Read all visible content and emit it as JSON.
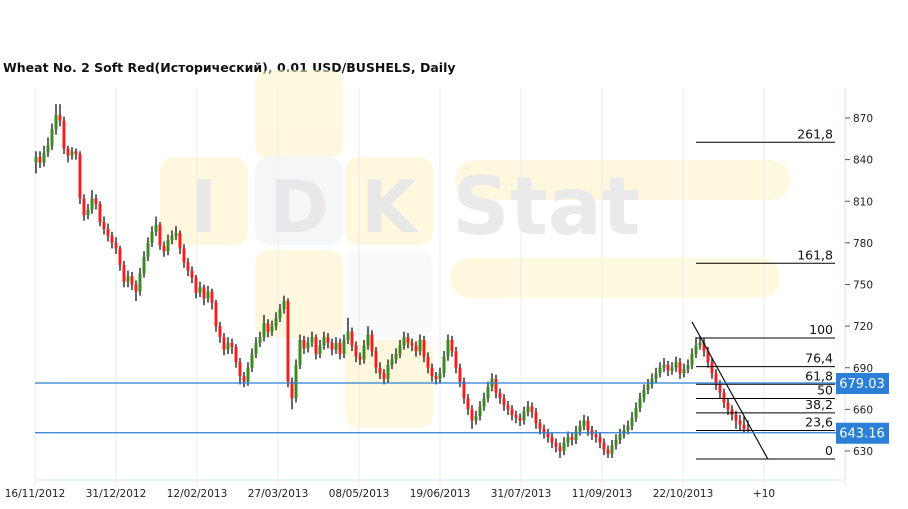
{
  "title": "Wheat  No. 2 Soft Red(Исторический), 0.01 USD/BUSHELS, Daily",
  "watermark": {
    "letters": [
      "I",
      "D",
      "K"
    ],
    "word": "Stat"
  },
  "colors": {
    "up": "#3b8b1f",
    "down": "#ee2222",
    "wick": "#000000",
    "hline": "#2b7fd6",
    "label_bg": "#2b7fd6",
    "grid": "#e4edf5",
    "fib": "#000000"
  },
  "chart_data": {
    "type": "candlestick",
    "title": "Wheat  No. 2 Soft Red(Исторический), 0.01 USD/BUSHELS, Daily",
    "ylim": [
      616,
      890
    ],
    "y_ticks": [
      870,
      840,
      810,
      780,
      750,
      720,
      690,
      660,
      630
    ],
    "x_tick_labels": [
      "16/11/2012",
      "31/12/2012",
      "12/02/2013",
      "27/03/2013",
      "08/05/2013",
      "19/06/2013",
      "31/07/2013",
      "11/09/2013",
      "22/10/2013",
      "+10"
    ],
    "grid": true,
    "price_lines": [
      {
        "value": 679.03,
        "label": "679.03"
      },
      {
        "value": 643.16,
        "label": "643.16"
      }
    ],
    "fibonacci": [
      {
        "label": "261,8",
        "value": 852.5
      },
      {
        "label": "161,8",
        "value": 765.3
      },
      {
        "label": "100",
        "value": 711.4
      },
      {
        "label": "76,4",
        "value": 690.8
      },
      {
        "label": "61,8",
        "value": 678.1
      },
      {
        "label": "50",
        "value": 667.8
      },
      {
        "label": "38,2",
        "value": 657.5
      },
      {
        "label": "23,6",
        "value": 644.8
      },
      {
        "label": "0",
        "value": 624.2
      }
    ],
    "trendline": {
      "from": [
        164,
        723
      ],
      "to": [
        183,
        624
      ]
    },
    "ohlc": [
      [
        838,
        846,
        830,
        842
      ],
      [
        842,
        846,
        834,
        838
      ],
      [
        838,
        850,
        835,
        845
      ],
      [
        845,
        856,
        842,
        850
      ],
      [
        850,
        866,
        847,
        862
      ],
      [
        862,
        880,
        858,
        872
      ],
      [
        872,
        880,
        864,
        868
      ],
      [
        868,
        871,
        844,
        848
      ],
      [
        848,
        850,
        838,
        843
      ],
      [
        843,
        849,
        840,
        846
      ],
      [
        846,
        848,
        840,
        844
      ],
      [
        844,
        846,
        808,
        812
      ],
      [
        812,
        815,
        796,
        800
      ],
      [
        800,
        808,
        797,
        804
      ],
      [
        804,
        818,
        801,
        812
      ],
      [
        812,
        815,
        804,
        808
      ],
      [
        808,
        810,
        792,
        795
      ],
      [
        795,
        799,
        786,
        790
      ],
      [
        790,
        794,
        781,
        785
      ],
      [
        785,
        788,
        776,
        780
      ],
      [
        780,
        784,
        772,
        776
      ],
      [
        776,
        778,
        760,
        764
      ],
      [
        764,
        767,
        748,
        752
      ],
      [
        752,
        760,
        748,
        756
      ],
      [
        756,
        759,
        746,
        750
      ],
      [
        750,
        753,
        738,
        745
      ],
      [
        745,
        762,
        742,
        758
      ],
      [
        758,
        774,
        755,
        770
      ],
      [
        770,
        784,
        767,
        780
      ],
      [
        780,
        792,
        777,
        788
      ],
      [
        788,
        799,
        785,
        793
      ],
      [
        793,
        795,
        775,
        778
      ],
      [
        778,
        781,
        770,
        774
      ],
      [
        774,
        786,
        771,
        782
      ],
      [
        782,
        789,
        779,
        785
      ],
      [
        785,
        792,
        782,
        787
      ],
      [
        787,
        789,
        772,
        776
      ],
      [
        776,
        779,
        762,
        766
      ],
      [
        766,
        769,
        756,
        760
      ],
      [
        760,
        763,
        751,
        755
      ],
      [
        755,
        757,
        740,
        744
      ],
      [
        744,
        752,
        741,
        748
      ],
      [
        748,
        750,
        735,
        740
      ],
      [
        740,
        749,
        737,
        745
      ],
      [
        745,
        747,
        732,
        737
      ],
      [
        737,
        739,
        716,
        720
      ],
      [
        720,
        723,
        708,
        712
      ],
      [
        712,
        715,
        699,
        703
      ],
      [
        703,
        712,
        700,
        708
      ],
      [
        708,
        711,
        700,
        705
      ],
      [
        705,
        707,
        690,
        694
      ],
      [
        694,
        697,
        678,
        684
      ],
      [
        684,
        687,
        676,
        680
      ],
      [
        680,
        694,
        677,
        690
      ],
      [
        690,
        704,
        687,
        700
      ],
      [
        700,
        712,
        697,
        708
      ],
      [
        708,
        716,
        705,
        712
      ],
      [
        712,
        728,
        709,
        722
      ],
      [
        722,
        725,
        712,
        716
      ],
      [
        716,
        724,
        713,
        720
      ],
      [
        720,
        730,
        717,
        726
      ],
      [
        726,
        736,
        723,
        732
      ],
      [
        732,
        742,
        729,
        738
      ],
      [
        738,
        740,
        676,
        680
      ],
      [
        680,
        683,
        660,
        668
      ],
      [
        668,
        696,
        665,
        692
      ],
      [
        692,
        714,
        689,
        710
      ],
      [
        710,
        713,
        700,
        704
      ],
      [
        704,
        712,
        701,
        708
      ],
      [
        708,
        716,
        705,
        712
      ],
      [
        712,
        714,
        696,
        700
      ],
      [
        700,
        710,
        697,
        706
      ],
      [
        706,
        716,
        703,
        712
      ],
      [
        712,
        715,
        704,
        708
      ],
      [
        708,
        711,
        699,
        703
      ],
      [
        703,
        712,
        700,
        708
      ],
      [
        708,
        711,
        696,
        700
      ],
      [
        700,
        714,
        697,
        710
      ],
      [
        710,
        726,
        707,
        716
      ],
      [
        716,
        719,
        702,
        706
      ],
      [
        706,
        709,
        694,
        698
      ],
      [
        698,
        701,
        692,
        696
      ],
      [
        696,
        710,
        693,
        706
      ],
      [
        706,
        720,
        703,
        714
      ],
      [
        714,
        717,
        698,
        702
      ],
      [
        702,
        705,
        686,
        690
      ],
      [
        690,
        694,
        682,
        686
      ],
      [
        686,
        689,
        678,
        682
      ],
      [
        682,
        696,
        679,
        692
      ],
      [
        692,
        700,
        689,
        696
      ],
      [
        696,
        704,
        693,
        700
      ],
      [
        700,
        710,
        697,
        706
      ],
      [
        706,
        716,
        703,
        712
      ],
      [
        712,
        715,
        704,
        708
      ],
      [
        708,
        711,
        702,
        706
      ],
      [
        706,
        709,
        698,
        702
      ],
      [
        702,
        714,
        699,
        710
      ],
      [
        710,
        713,
        694,
        698
      ],
      [
        698,
        701,
        686,
        690
      ],
      [
        690,
        693,
        680,
        684
      ],
      [
        684,
        687,
        678,
        682
      ],
      [
        682,
        690,
        679,
        686
      ],
      [
        686,
        702,
        683,
        698
      ],
      [
        698,
        714,
        695,
        710
      ],
      [
        710,
        713,
        698,
        702
      ],
      [
        702,
        705,
        686,
        690
      ],
      [
        690,
        693,
        676,
        680
      ],
      [
        680,
        683,
        664,
        668
      ],
      [
        668,
        671,
        656,
        660
      ],
      [
        660,
        663,
        646,
        652
      ],
      [
        652,
        659,
        649,
        655
      ],
      [
        655,
        666,
        652,
        662
      ],
      [
        662,
        672,
        659,
        668
      ],
      [
        668,
        680,
        665,
        676
      ],
      [
        676,
        686,
        673,
        682
      ],
      [
        682,
        685,
        668,
        672
      ],
      [
        672,
        675,
        664,
        668
      ],
      [
        668,
        671,
        659,
        663
      ],
      [
        663,
        666,
        656,
        660
      ],
      [
        660,
        663,
        652,
        656
      ],
      [
        656,
        659,
        650,
        654
      ],
      [
        654,
        657,
        648,
        652
      ],
      [
        652,
        662,
        649,
        658
      ],
      [
        658,
        666,
        655,
        662
      ],
      [
        662,
        665,
        654,
        658
      ],
      [
        658,
        661,
        646,
        650
      ],
      [
        650,
        653,
        642,
        646
      ],
      [
        646,
        649,
        639,
        643
      ],
      [
        643,
        646,
        636,
        640
      ],
      [
        640,
        643,
        632,
        636
      ],
      [
        636,
        639,
        629,
        633
      ],
      [
        633,
        636,
        625,
        630
      ],
      [
        630,
        640,
        627,
        636
      ],
      [
        636,
        644,
        633,
        640
      ],
      [
        640,
        643,
        634,
        638
      ],
      [
        638,
        648,
        635,
        644
      ],
      [
        644,
        652,
        641,
        648
      ],
      [
        648,
        656,
        645,
        652
      ],
      [
        652,
        655,
        641,
        645
      ],
      [
        645,
        648,
        638,
        642
      ],
      [
        642,
        645,
        636,
        640
      ],
      [
        640,
        643,
        632,
        636
      ],
      [
        636,
        639,
        627,
        631
      ],
      [
        631,
        634,
        625,
        628
      ],
      [
        628,
        638,
        625,
        634
      ],
      [
        634,
        642,
        631,
        638
      ],
      [
        638,
        646,
        635,
        642
      ],
      [
        642,
        649,
        639,
        645
      ],
      [
        645,
        652,
        642,
        648
      ],
      [
        648,
        658,
        645,
        654
      ],
      [
        654,
        665,
        651,
        661
      ],
      [
        661,
        672,
        658,
        668
      ],
      [
        668,
        678,
        665,
        674
      ],
      [
        674,
        682,
        671,
        678
      ],
      [
        678,
        686,
        675,
        682
      ],
      [
        682,
        690,
        679,
        686
      ],
      [
        686,
        694,
        683,
        690
      ],
      [
        690,
        697,
        687,
        692
      ],
      [
        692,
        695,
        684,
        688
      ],
      [
        688,
        694,
        685,
        690
      ],
      [
        690,
        698,
        687,
        694
      ],
      [
        694,
        697,
        682,
        686
      ],
      [
        686,
        693,
        683,
        689
      ],
      [
        689,
        696,
        686,
        692
      ],
      [
        692,
        704,
        689,
        700
      ],
      [
        700,
        712,
        697,
        706
      ],
      [
        706,
        713,
        703,
        708
      ],
      [
        708,
        711,
        698,
        702
      ],
      [
        702,
        705,
        690,
        694
      ],
      [
        694,
        697,
        682,
        686
      ],
      [
        686,
        689,
        674,
        678
      ],
      [
        678,
        681,
        668,
        672
      ],
      [
        672,
        675,
        661,
        665
      ],
      [
        665,
        668,
        656,
        660
      ],
      [
        660,
        663,
        652,
        656
      ],
      [
        656,
        659,
        646,
        652
      ],
      [
        652,
        656,
        645,
        649
      ],
      [
        649,
        655,
        643,
        646
      ],
      [
        646,
        652,
        643,
        645
      ]
    ]
  }
}
